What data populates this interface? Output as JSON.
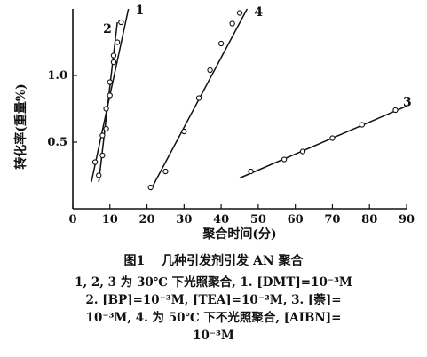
{
  "chart_data": {
    "type": "scatter",
    "title": "",
    "xlabel": "聚合时间(分)",
    "ylabel": "转化率(重量%)",
    "xlim": [
      0,
      90
    ],
    "ylim": [
      0,
      1.5
    ],
    "x_ticks": [
      "0",
      "10",
      "20",
      "30",
      "40",
      "50",
      "60",
      "70",
      "80",
      "90"
    ],
    "x_tick_values": [
      0,
      10,
      20,
      30,
      40,
      50,
      60,
      70,
      80,
      90
    ],
    "y_ticks": [
      "0.5",
      "1.0"
    ],
    "y_tick_values": [
      0.5,
      1.0
    ],
    "grid": false,
    "legend": "none",
    "series": [
      {
        "name": "1",
        "x": [
          6,
          8,
          9,
          10,
          11,
          12,
          13
        ],
        "y": [
          0.35,
          0.55,
          0.75,
          0.95,
          1.1,
          1.25,
          1.4
        ],
        "fit": [
          [
            5,
            0.2
          ],
          [
            15,
            1.5
          ]
        ]
      },
      {
        "name": "2",
        "x": [
          7,
          8,
          9,
          10,
          11
        ],
        "y": [
          0.25,
          0.4,
          0.6,
          0.85,
          1.15
        ],
        "fit": [
          [
            7,
            0.2
          ],
          [
            12,
            1.4
          ]
        ]
      },
      {
        "name": "3",
        "x": [
          48,
          57,
          62,
          70,
          78,
          87
        ],
        "y": [
          0.28,
          0.37,
          0.43,
          0.53,
          0.63,
          0.74
        ],
        "fit": [
          [
            45,
            0.23
          ],
          [
            90,
            0.77
          ]
        ]
      },
      {
        "name": "4",
        "x": [
          21,
          25,
          30,
          34,
          37,
          40,
          43,
          45
        ],
        "y": [
          0.16,
          0.28,
          0.58,
          0.83,
          1.04,
          1.24,
          1.39,
          1.47
        ],
        "fit": [
          [
            21,
            0.14
          ],
          [
            47,
            1.5
          ]
        ]
      }
    ]
  },
  "figure": {
    "caption_title": "图1　 几种引发剂引发 AN 聚合",
    "caption_lines": [
      "1, 2, 3 为 30℃ 下光照聚合, 1. [DMT]=10⁻³M",
      "2. [BP]=10⁻³M, [TEA]=10⁻²M, 3. [萘]=",
      "10⁻³M, 4. 为 50℃ 下不光照聚合, [AIBN]=",
      "10⁻³M"
    ]
  }
}
